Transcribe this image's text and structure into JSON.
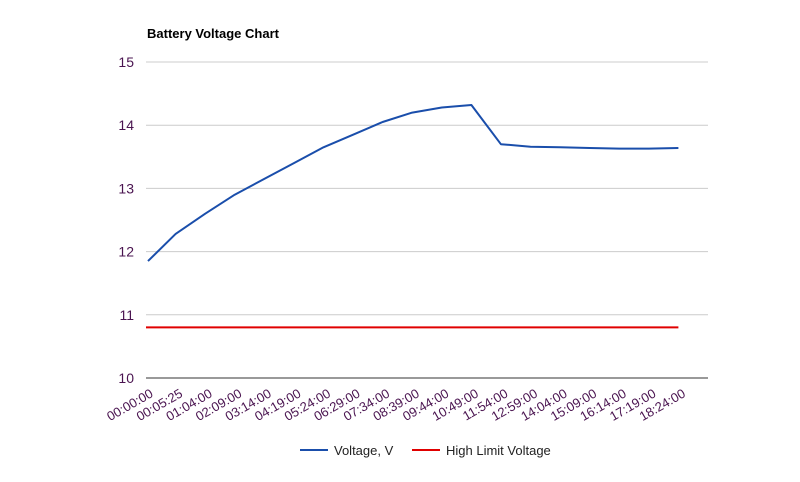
{
  "chart_data": {
    "type": "line",
    "title": "Battery Voltage Chart",
    "xlabel": "",
    "ylabel": "",
    "ylim": [
      10,
      15
    ],
    "yticks": [
      "15",
      "14",
      "13",
      "12",
      "11",
      "10"
    ],
    "x_tick_labels": [
      "00:00:00",
      "00:05:25",
      "01:04:00",
      "02:09:00",
      "03:14:00",
      "04:19:00",
      "05:24:00",
      "06:29:00",
      "07:34:00",
      "08:39:00",
      "09:44:00",
      "10:49:00",
      "11:54:00",
      "12:59:00",
      "14:04:00",
      "15:09:00",
      "16:14:00",
      "17:19:00",
      "18:24:00"
    ],
    "grid": true,
    "legend_position": "bottom",
    "series": [
      {
        "name": "Voltage, V",
        "color": "#1a4eab",
        "x": [
          "00:00:00",
          "00:05:25",
          "01:04:00",
          "02:09:00",
          "03:14:00",
          "04:19:00",
          "05:24:00",
          "06:29:00",
          "07:34:00",
          "08:39:00",
          "09:44:00",
          "10:49:00",
          "11:54:00",
          "12:59:00",
          "14:04:00",
          "15:09:00",
          "16:14:00",
          "17:19:00",
          "18:24:00"
        ],
        "values": [
          11.85,
          12.28,
          12.6,
          12.9,
          13.15,
          13.4,
          13.65,
          13.85,
          14.05,
          14.2,
          14.28,
          14.32,
          13.7,
          13.66,
          13.65,
          13.64,
          13.63,
          13.63,
          13.64
        ]
      },
      {
        "name": "High Limit Voltage",
        "color": "#e00000",
        "x": [
          "00:00:00",
          "18:24:00"
        ],
        "values": [
          10.8,
          10.8
        ]
      }
    ]
  }
}
